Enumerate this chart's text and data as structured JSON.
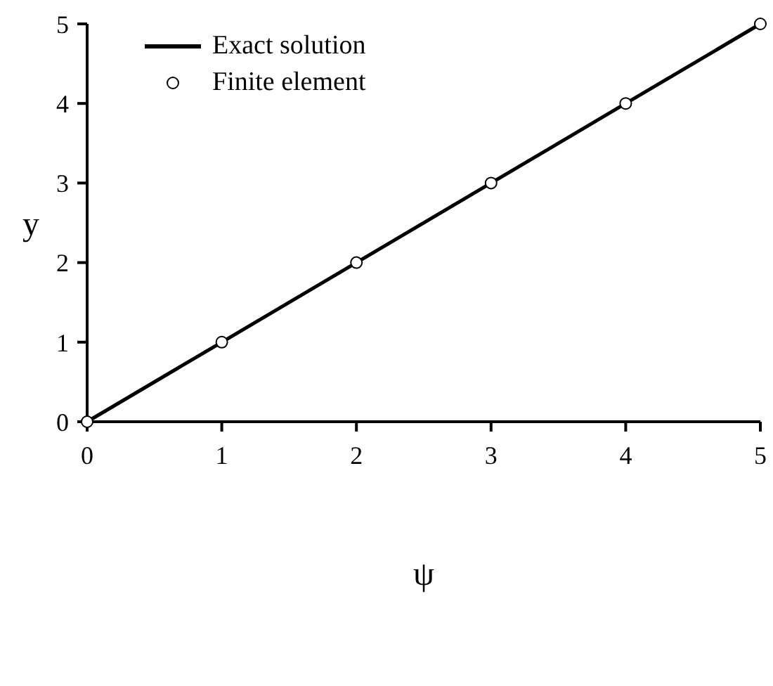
{
  "chart_data": {
    "type": "line",
    "xlabel": "ψ",
    "ylabel": "y",
    "x": [
      0,
      1,
      2,
      3,
      4,
      5
    ],
    "series": [
      {
        "name": "Exact solution",
        "color": "#000000",
        "values": [
          0,
          1,
          2,
          3,
          4,
          5
        ]
      },
      {
        "name": "Finite element",
        "type": "scatter",
        "marker": "circle",
        "color": "#000000",
        "values": [
          0,
          1,
          2,
          3,
          4,
          5
        ]
      }
    ],
    "xlim": [
      0,
      5
    ],
    "ylim": [
      0,
      5
    ],
    "xticks": [
      0,
      1,
      2,
      3,
      4,
      5
    ],
    "yticks": [
      0,
      1,
      2,
      3,
      4,
      5
    ],
    "grid": false,
    "legend": "top left",
    "line_style": "solid"
  }
}
